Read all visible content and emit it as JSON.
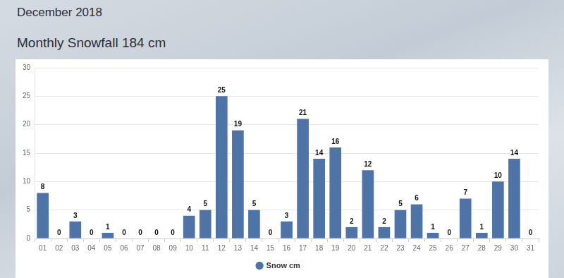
{
  "chart_data": {
    "type": "bar",
    "title": "December 2018",
    "subtitle": "Monthly Snowfall 184 cm",
    "categories": [
      "01",
      "02",
      "03",
      "04",
      "05",
      "06",
      "07",
      "08",
      "09",
      "10",
      "11",
      "12",
      "13",
      "14",
      "15",
      "16",
      "17",
      "18",
      "19",
      "20",
      "21",
      "22",
      "23",
      "24",
      "25",
      "26",
      "27",
      "28",
      "29",
      "30",
      "31"
    ],
    "series": [
      {
        "name": "Snow cm",
        "color": "#4e73a6",
        "values": [
          8,
          0,
          3,
          0,
          1,
          0,
          0,
          0,
          0,
          4,
          5,
          25,
          19,
          5,
          0,
          3,
          21,
          14,
          16,
          2,
          12,
          2,
          5,
          6,
          1,
          0,
          7,
          1,
          10,
          14,
          0
        ]
      }
    ],
    "ylim": [
      0,
      30
    ],
    "yticks": [
      0,
      5,
      10,
      15,
      20,
      25,
      30
    ],
    "grid": true,
    "legend": "bottom",
    "data_labels": true
  }
}
